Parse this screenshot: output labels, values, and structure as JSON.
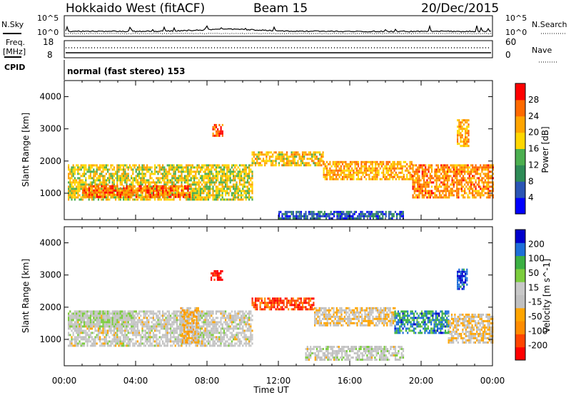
{
  "header": {
    "station": "Hokkaido West (fitACF)",
    "beam": "Beam 15",
    "date": "20/Dec/2015"
  },
  "top_panels": {
    "nsky_label": "N.Sky",
    "nsearch_label": "N.Search",
    "noise_left_ticks": [
      "10^5",
      "10^0"
    ],
    "noise_right_ticks": [
      "10^5",
      "10^0"
    ],
    "freq_label_1": "Freq.",
    "freq_label_2": "[MHz]",
    "freq_left_ticks": [
      "18",
      "8"
    ],
    "nave_right_ticks": [
      "60",
      "0"
    ],
    "nave_label": "Nave",
    "cpid_label": "CPID",
    "cpid_text": "normal (fast stereo) 153"
  },
  "colors": {
    "power_scale": [
      "#0000ff",
      "#2a55b5",
      "#2e8b57",
      "#4caf50",
      "#ffd700",
      "#ffa500",
      "#ff6a00",
      "#ff0000"
    ],
    "velocity_scale": [
      "#ff0000",
      "#ff4500",
      "#ff8c00",
      "#ffa500",
      "#c0c0c0",
      "#c8c8c8",
      "#7ccd3e",
      "#3cb043",
      "#1e6fd9",
      "#0000cd"
    ]
  },
  "chart_data": [
    {
      "type": "heatmap",
      "panel": "power",
      "ylabel": "Slant Range [km]",
      "yticks": [
        "1000",
        "2000",
        "3000",
        "4000"
      ],
      "ylim": [
        180,
        4500
      ],
      "colorbar_label": "Power [dB]",
      "colorbar_ticks": [
        "4",
        "8",
        "12",
        "16",
        "20",
        "24",
        "28"
      ],
      "colorbar_range": [
        0,
        32
      ],
      "x_hours": [
        0,
        24
      ],
      "echo_bands": [
        {
          "from_h": 0.2,
          "to_h": 10.5,
          "range_lo_km": 800,
          "range_hi_km": 1900,
          "power_db": 18
        },
        {
          "from_h": 1.0,
          "to_h": 7.0,
          "range_lo_km": 900,
          "range_hi_km": 1250,
          "power_db": 26
        },
        {
          "from_h": 10.5,
          "to_h": 14.5,
          "range_lo_km": 1900,
          "range_hi_km": 2300,
          "power_db": 20
        },
        {
          "from_h": 14.5,
          "to_h": 19.5,
          "range_lo_km": 1450,
          "range_hi_km": 2000,
          "power_db": 22
        },
        {
          "from_h": 19.5,
          "to_h": 24.0,
          "range_lo_km": 900,
          "range_hi_km": 1900,
          "power_db": 24
        },
        {
          "from_h": 8.3,
          "to_h": 8.9,
          "range_lo_km": 2800,
          "range_hi_km": 3150,
          "power_db": 26
        },
        {
          "from_h": 22.0,
          "to_h": 22.7,
          "range_lo_km": 2500,
          "range_hi_km": 3300,
          "power_db": 22
        },
        {
          "from_h": 12.0,
          "to_h": 19.0,
          "range_lo_km": 200,
          "range_hi_km": 450,
          "power_db": 6
        }
      ]
    },
    {
      "type": "heatmap",
      "panel": "velocity",
      "ylabel": "Slant Range [km]",
      "yticks": [
        "1000",
        "2000",
        "3000",
        "4000"
      ],
      "ylim": [
        180,
        4500
      ],
      "colorbar_label": "Velocity [m s^-1]",
      "colorbar_ticks": [
        "200",
        "100",
        "50",
        "15",
        "-15",
        "-50",
        "-100",
        "-200"
      ],
      "colorbar_range": [
        -250,
        250
      ],
      "x_hours": [
        0,
        24
      ],
      "echo_bands": [
        {
          "from_h": 0.2,
          "to_h": 10.5,
          "range_lo_km": 800,
          "range_hi_km": 1900,
          "velocity": 0
        },
        {
          "from_h": 0.2,
          "to_h": 4.0,
          "range_lo_km": 1400,
          "range_hi_km": 1900,
          "velocity": 30
        },
        {
          "from_h": 6.5,
          "to_h": 7.5,
          "range_lo_km": 900,
          "range_hi_km": 2000,
          "velocity": -60
        },
        {
          "from_h": 10.5,
          "to_h": 14.0,
          "range_lo_km": 1950,
          "range_hi_km": 2300,
          "velocity": -180
        },
        {
          "from_h": 14.0,
          "to_h": 18.5,
          "range_lo_km": 1450,
          "range_hi_km": 2000,
          "velocity": -40
        },
        {
          "from_h": 18.5,
          "to_h": 21.5,
          "range_lo_km": 1200,
          "range_hi_km": 1900,
          "velocity": 150
        },
        {
          "from_h": 21.5,
          "to_h": 24.0,
          "range_lo_km": 900,
          "range_hi_km": 1800,
          "velocity": -40
        },
        {
          "from_h": 8.2,
          "to_h": 8.9,
          "range_lo_km": 2850,
          "range_hi_km": 3150,
          "velocity": -220
        },
        {
          "from_h": 22.0,
          "to_h": 22.6,
          "range_lo_km": 2600,
          "range_hi_km": 3200,
          "velocity": 200
        },
        {
          "from_h": 13.5,
          "to_h": 19.0,
          "range_lo_km": 350,
          "range_hi_km": 800,
          "velocity": 5
        }
      ]
    }
  ],
  "x_axis": {
    "ticks": [
      "00:00",
      "04:00",
      "08:00",
      "12:00",
      "16:00",
      "20:00",
      "00:00"
    ],
    "label": "Time UT"
  }
}
